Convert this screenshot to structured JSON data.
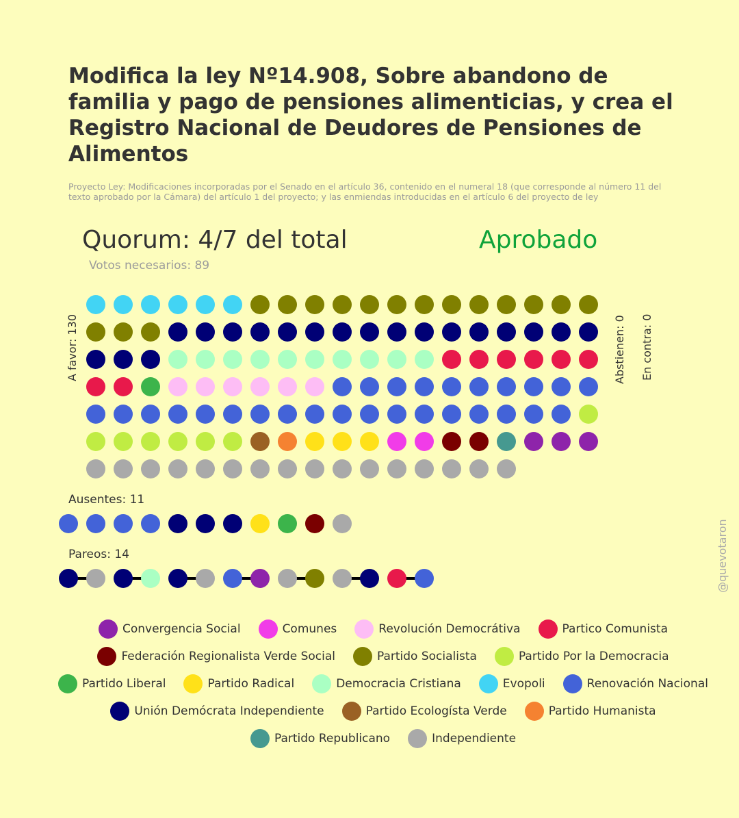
{
  "header": {
    "title": "Modifica la ley Nº14.908, Sobre abandono de familia y pago de pensiones alimenticias, y crea el Registro Nacional de Deudores de Pensiones de Alimentos",
    "subtitle": "Proyecto Ley: Modificaciones incorporadas por el Senado en el artículo 36, contenido en el numeral 18 (que corresponde al número 11 del texto aprobado por la Cámara) del artículo 1 del proyecto; y las enmiendas introducidas en el artículo 6 del proyecto de ley",
    "quorum": "Quorum: 4/7 del total",
    "result": "Aprobado",
    "needed": "Votos necesarios: 89"
  },
  "watermark": "@quevotaron",
  "colors": {
    "background": "#fdfdbd",
    "result": "#0fa33a"
  },
  "chart_data": {
    "type": "dot-matrix",
    "parties": [
      {
        "name": "Convergencia Social",
        "color": "#8e24aa"
      },
      {
        "name": "Comunes",
        "color": "#f13ce8"
      },
      {
        "name": "Revolución Democrátiva",
        "color": "#fdbdf5"
      },
      {
        "name": "Partico Comunista",
        "color": "#e8194b"
      },
      {
        "name": "Federación Regionalista Verde Social",
        "color": "#7a0000"
      },
      {
        "name": "Partido Socialista",
        "color": "#808000"
      },
      {
        "name": "Partido Por la Democracia",
        "color": "#c0ec43"
      },
      {
        "name": "Partido Liberal",
        "color": "#3cb44b"
      },
      {
        "name": "Partido Radical",
        "color": "#ffe119"
      },
      {
        "name": "Democracia Cristiana",
        "color": "#aaffc3"
      },
      {
        "name": "Evopoli",
        "color": "#42d4f4"
      },
      {
        "name": "Renovación Nacional",
        "color": "#4363d8"
      },
      {
        "name": "Unión Demócrata Independiente",
        "color": "#000075"
      },
      {
        "name": "Partido Ecologísta Verde",
        "color": "#9a6124"
      },
      {
        "name": "Partido Humanista",
        "color": "#f58231"
      },
      {
        "name": "Partido Republicano",
        "color": "#469990"
      },
      {
        "name": "Independiente",
        "color": "#a9a9a9"
      }
    ],
    "a_favor": {
      "label": "A favor: 130",
      "count": 130,
      "groups": [
        {
          "party": "Evopoli",
          "count": 6
        },
        {
          "party": "Partido Socialista",
          "count": 16
        },
        {
          "party": "Unión Demócrata Independiente",
          "count": 19
        },
        {
          "party": "Democracia Cristiana",
          "count": 10
        },
        {
          "party": "Partico Comunista",
          "count": 8
        },
        {
          "party": "Partido Liberal",
          "count": 1
        },
        {
          "party": "Revolución Democrátiva",
          "count": 6
        },
        {
          "party": "Renovación Nacional",
          "count": 28
        },
        {
          "party": "Partido Por la Democracia",
          "count": 7
        },
        {
          "party": "Partido Ecologísta Verde",
          "count": 1
        },
        {
          "party": "Partido Humanista",
          "count": 1
        },
        {
          "party": "Partido Radical",
          "count": 3
        },
        {
          "party": "Comunes",
          "count": 2
        },
        {
          "party": "Federación Regionalista Verde Social",
          "count": 2
        },
        {
          "party": "Partido Republicano",
          "count": 1
        },
        {
          "party": "Convergencia Social",
          "count": 3
        },
        {
          "party": "Independiente",
          "count": 16
        }
      ]
    },
    "abstienen": {
      "label": "Abstienen: 0",
      "count": 0
    },
    "en_contra": {
      "label": "En contra: 0",
      "count": 0
    },
    "ausentes": {
      "label": "Ausentes: 11",
      "count": 11,
      "sequence": [
        "Renovación Nacional",
        "Renovación Nacional",
        "Renovación Nacional",
        "Renovación Nacional",
        "Unión Demócrata Independiente",
        "Unión Demócrata Independiente",
        "Unión Demócrata Independiente",
        "Partido Radical",
        "Partido Liberal",
        "Federación Regionalista Verde Social",
        "Independiente"
      ]
    },
    "pareos": {
      "label": "Pareos: 14",
      "count": 14,
      "pairs": [
        [
          "Unión Demócrata Independiente",
          "Independiente"
        ],
        [
          "Unión Demócrata Independiente",
          "Democracia Cristiana"
        ],
        [
          "Unión Demócrata Independiente",
          "Independiente"
        ],
        [
          "Renovación Nacional",
          "Convergencia Social"
        ],
        [
          "Independiente",
          "Partido Socialista"
        ],
        [
          "Independiente",
          "Unión Demócrata Independiente"
        ],
        [
          "Partico Comunista",
          "Renovación Nacional"
        ]
      ]
    }
  }
}
